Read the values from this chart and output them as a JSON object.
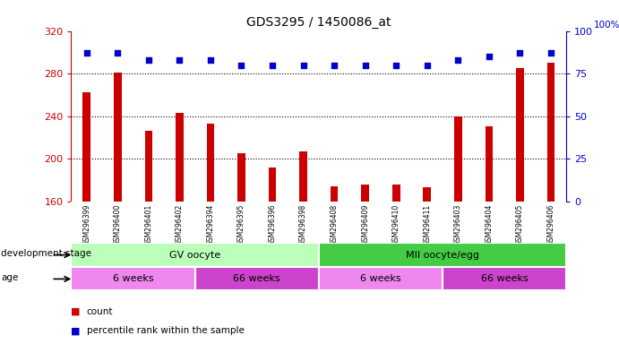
{
  "title": "GDS3295 / 1450086_at",
  "samples": [
    "GSM296399",
    "GSM296400",
    "GSM296401",
    "GSM296402",
    "GSM296394",
    "GSM296395",
    "GSM296396",
    "GSM296398",
    "GSM296408",
    "GSM296409",
    "GSM296410",
    "GSM296411",
    "GSM296403",
    "GSM296404",
    "GSM296405",
    "GSM296406"
  ],
  "counts": [
    262,
    281,
    226,
    243,
    233,
    205,
    192,
    207,
    174,
    176,
    176,
    173,
    240,
    230,
    285,
    290
  ],
  "percentiles": [
    87,
    87,
    83,
    83,
    83,
    80,
    80,
    80,
    80,
    80,
    80,
    80,
    83,
    85,
    87,
    87
  ],
  "ylim_left": [
    160,
    320
  ],
  "ylim_right": [
    0,
    100
  ],
  "yticks_left": [
    160,
    200,
    240,
    280,
    320
  ],
  "yticks_right": [
    0,
    25,
    50,
    75,
    100
  ],
  "bar_color": "#cc0000",
  "dot_color": "#0000cc",
  "plot_bg": "#ffffff",
  "xticklabel_bg": "#d0d0d0",
  "title_color": "#000000",
  "left_tick_color": "#cc0000",
  "right_tick_color": "#0000cc",
  "dev_stage_groups": [
    {
      "label": "GV oocyte",
      "start": 0,
      "end": 8,
      "color": "#bbffbb"
    },
    {
      "label": "MII oocyte/egg",
      "start": 8,
      "end": 16,
      "color": "#44cc44"
    }
  ],
  "age_groups": [
    {
      "label": "6 weeks",
      "start": 0,
      "end": 4,
      "color": "#ee88ee"
    },
    {
      "label": "66 weeks",
      "start": 4,
      "end": 8,
      "color": "#cc44cc"
    },
    {
      "label": "6 weeks",
      "start": 8,
      "end": 12,
      "color": "#ee88ee"
    },
    {
      "label": "66 weeks",
      "start": 12,
      "end": 16,
      "color": "#cc44cc"
    }
  ],
  "legend_count_color": "#cc0000",
  "legend_dot_color": "#0000cc",
  "dev_stage_label": "development stage",
  "age_label": "age",
  "grid_dotted_values": [
    200,
    240,
    280
  ],
  "bar_width": 0.25
}
